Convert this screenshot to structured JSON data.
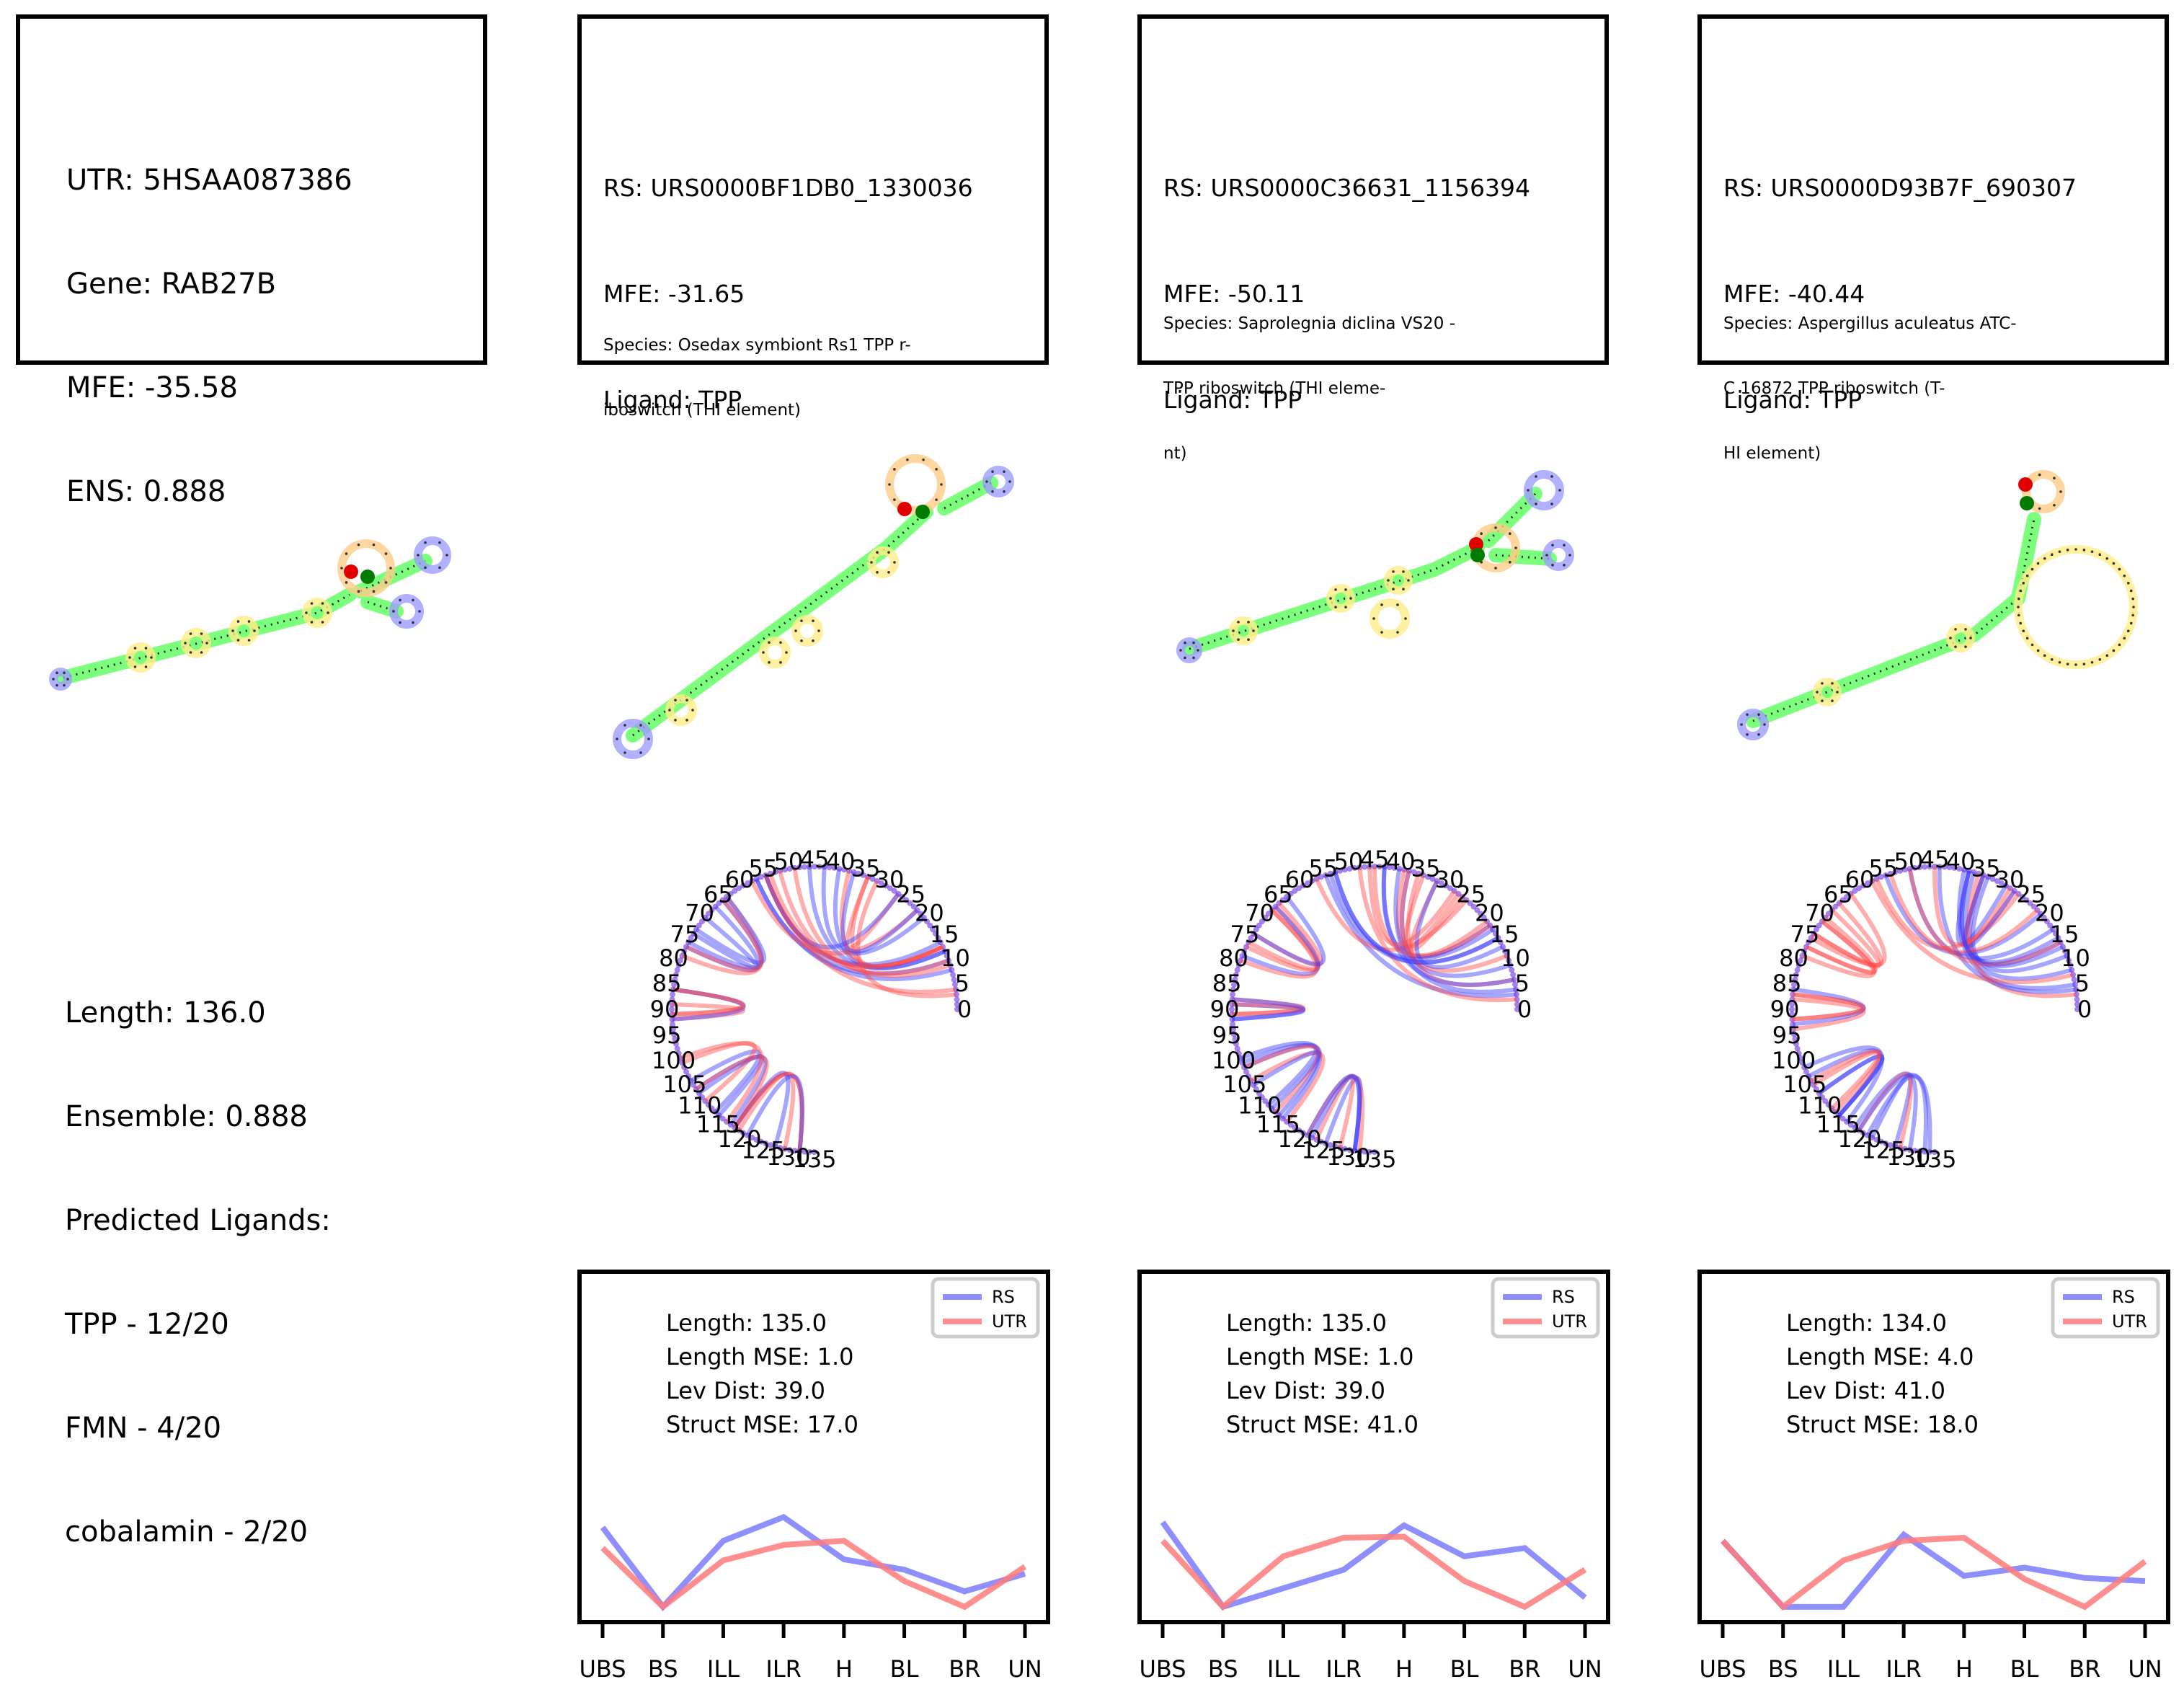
{
  "utr": {
    "info": [
      "UTR: 5HSAA087386",
      "Gene: RAB27B",
      "MFE: -35.58",
      "ENS: 0.888"
    ],
    "summary": [
      "Length: 136.0",
      "Ensemble: 0.888",
      "Predicted Ligands:",
      "TPP - 12/20",
      "FMN - 4/20",
      "cobalamin - 2/20"
    ]
  },
  "riboswitches": [
    {
      "info": [
        "RS: URS0000BF1DB0_1330036",
        "MFE: -31.65",
        "Ligand: TPP"
      ],
      "species": [
        "Species: Osedax symbiont Rs1 TPP r-",
        "iboswitch (THI element)"
      ],
      "stats": [
        "Length: 135.0",
        "Length MSE: 1.0",
        "Lev Dist: 39.0",
        "Struct MSE: 17.0"
      ]
    },
    {
      "info": [
        "RS: URS0000C36631_1156394",
        "MFE: -50.11",
        "Ligand: TPP"
      ],
      "species": [
        "Species: Saprolegnia diclina VS20 -",
        "TPP riboswitch (THI eleme-",
        "nt)"
      ],
      "stats": [
        "Length: 135.0",
        "Length MSE: 1.0",
        "Lev Dist: 39.0",
        "Struct MSE: 41.0"
      ]
    },
    {
      "info": [
        "RS: URS0000D93B7F_690307",
        "MFE: -40.44",
        "Ligand: TPP"
      ],
      "species": [
        "Species: Aspergillus aculeatus ATC-",
        "C 16872 TPP riboswitch (T-",
        "HI element)"
      ],
      "stats": [
        "Length: 134.0",
        "Length MSE: 4.0",
        "Lev Dist: 41.0",
        "Struct MSE: 18.0"
      ]
    }
  ],
  "chord_ticks": [
    "0",
    "5",
    "10",
    "15",
    "20",
    "25",
    "30",
    "35",
    "40",
    "45",
    "50",
    "55",
    "60",
    "65",
    "70",
    "75",
    "80",
    "85",
    "90",
    "95",
    "100",
    "105",
    "110",
    "115",
    "120",
    "125",
    "130",
    "135"
  ],
  "colors": {
    "rs": "#7b7bff",
    "utr": "#ff7b7b",
    "stem": "#7cff7c",
    "loop_yellow": "#ffee88",
    "hairpin_orange": "#ffcc88",
    "end_blue": "#9d9dff"
  },
  "chart_data": [
    {
      "type": "line",
      "categories": [
        "UBS",
        "BS",
        "ILL",
        "ILR",
        "H",
        "BL",
        "BR",
        "UN"
      ],
      "series": [
        {
          "name": "RS",
          "values": [
            0.82,
            0.05,
            0.69,
            0.92,
            0.51,
            0.41,
            0.2,
            0.37
          ]
        },
        {
          "name": "UTR",
          "values": [
            0.62,
            0.05,
            0.5,
            0.65,
            0.69,
            0.3,
            0.05,
            0.44
          ]
        }
      ],
      "legend": "top-right",
      "grid": false,
      "ylim": [
        0,
        3.2
      ]
    },
    {
      "type": "line",
      "categories": [
        "UBS",
        "BS",
        "ILL",
        "ILR",
        "H",
        "BL",
        "BR",
        "UN"
      ],
      "series": [
        {
          "name": "RS",
          "values": [
            0.87,
            0.05,
            0.23,
            0.41,
            0.84,
            0.54,
            0.62,
            0.14
          ]
        },
        {
          "name": "UTR",
          "values": [
            0.69,
            0.05,
            0.54,
            0.72,
            0.73,
            0.3,
            0.05,
            0.41
          ]
        }
      ],
      "legend": "top-right",
      "grid": false,
      "ylim": [
        0,
        3.2
      ]
    },
    {
      "type": "line",
      "categories": [
        "UBS",
        "BS",
        "ILL",
        "ILR",
        "H",
        "BL",
        "BR",
        "UN"
      ],
      "series": [
        {
          "name": "RS",
          "values": [
            0.69,
            0.05,
            0.05,
            0.75,
            0.35,
            0.43,
            0.33,
            0.3
          ]
        },
        {
          "name": "UTR",
          "values": [
            0.69,
            0.05,
            0.5,
            0.69,
            0.72,
            0.32,
            0.05,
            0.49
          ]
        }
      ],
      "legend": "top-right",
      "grid": false,
      "ylim": [
        0,
        3.2
      ]
    }
  ]
}
